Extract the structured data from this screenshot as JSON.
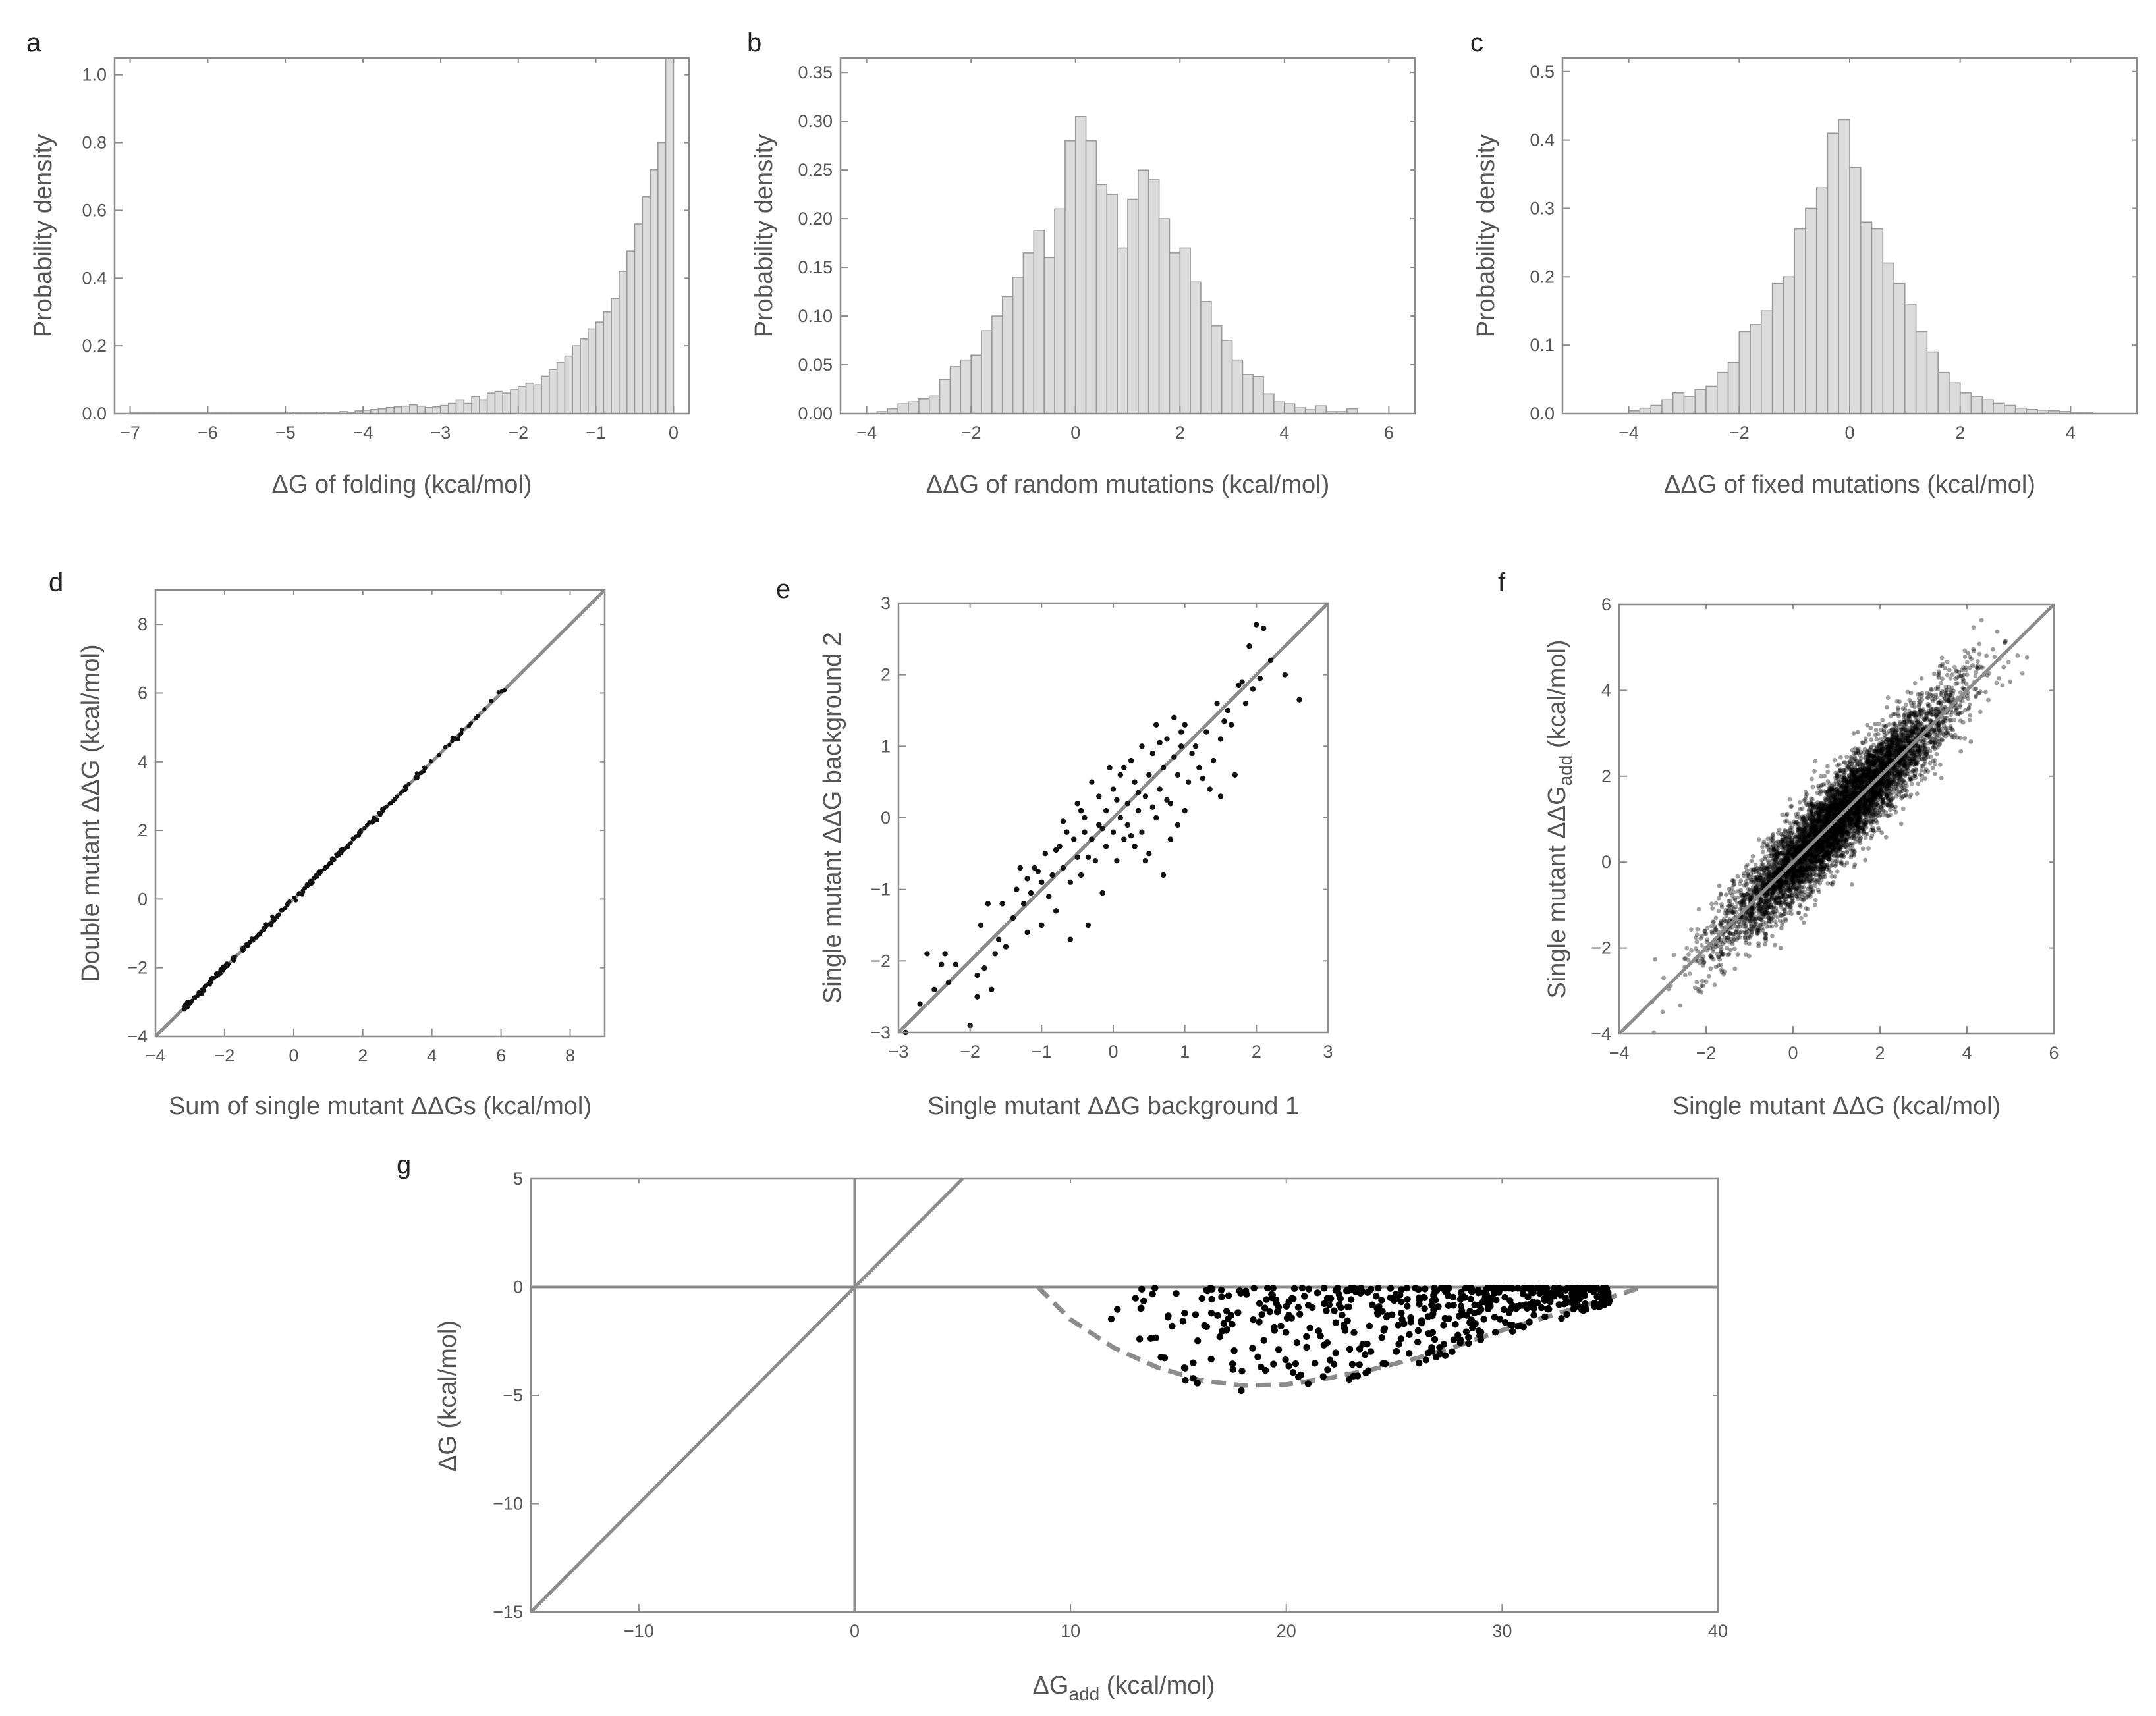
{
  "chart_data": [
    {
      "id": "a",
      "panel_label": "a",
      "type": "bar",
      "xlabel": "ΔG of folding (kcal/mol)",
      "ylabel": "Probability density",
      "xlim": [
        -7.2,
        0.2
      ],
      "ylim": [
        0,
        1.05
      ],
      "xticks": [
        -7,
        -6,
        -5,
        -4,
        -3,
        -2,
        -1,
        0
      ],
      "xtick_labels": [
        "−7",
        "−6",
        "−5",
        "−4",
        "−3",
        "−2",
        "−1",
        "0"
      ],
      "yticks": [
        0,
        0.2,
        0.4,
        0.6,
        0.8,
        1.0
      ],
      "ytick_labels": [
        "0.0",
        "0.2",
        "0.4",
        "0.6",
        "0.8",
        "1.0"
      ],
      "bin_start": -7.0,
      "bin_width": 0.1,
      "values": [
        0.002,
        0.002,
        0.002,
        0.002,
        0.002,
        0.002,
        0.002,
        0.002,
        0.002,
        0.002,
        0.002,
        0.002,
        0.002,
        0.002,
        0.002,
        0.002,
        0.002,
        0.002,
        0.002,
        0.002,
        0.002,
        0.004,
        0.004,
        0.004,
        0.002,
        0.004,
        0.004,
        0.006,
        0.004,
        0.008,
        0.01,
        0.012,
        0.014,
        0.018,
        0.02,
        0.022,
        0.026,
        0.022,
        0.018,
        0.02,
        0.024,
        0.03,
        0.04,
        0.03,
        0.05,
        0.04,
        0.06,
        0.065,
        0.06,
        0.07,
        0.08,
        0.09,
        0.085,
        0.11,
        0.13,
        0.15,
        0.17,
        0.2,
        0.22,
        0.25,
        0.27,
        0.3,
        0.34,
        0.42,
        0.48,
        0.56,
        0.64,
        0.72,
        0.8,
        1.05
      ]
    },
    {
      "id": "b",
      "panel_label": "b",
      "type": "bar",
      "xlabel": "ΔΔG of random mutations (kcal/mol)",
      "ylabel": "Probability density",
      "xlim": [
        -4.5,
        6.5
      ],
      "ylim": [
        0,
        0.365
      ],
      "xticks": [
        -4,
        -2,
        0,
        2,
        4,
        6
      ],
      "xtick_labels": [
        "−4",
        "−2",
        "0",
        "2",
        "4",
        "6"
      ],
      "yticks": [
        0,
        0.05,
        0.1,
        0.15,
        0.2,
        0.25,
        0.3,
        0.35
      ],
      "ytick_labels": [
        "0.00",
        "0.05",
        "0.10",
        "0.15",
        "0.20",
        "0.25",
        "0.30",
        "0.35"
      ],
      "bin_start": -3.8,
      "bin_width": 0.2,
      "values": [
        0.002,
        0.005,
        0.01,
        0.012,
        0.015,
        0.018,
        0.035,
        0.048,
        0.055,
        0.06,
        0.085,
        0.1,
        0.12,
        0.14,
        0.165,
        0.188,
        0.16,
        0.21,
        0.28,
        0.305,
        0.28,
        0.235,
        0.225,
        0.17,
        0.22,
        0.25,
        0.24,
        0.2,
        0.165,
        0.17,
        0.135,
        0.115,
        0.09,
        0.075,
        0.055,
        0.04,
        0.038,
        0.02,
        0.012,
        0.01,
        0.006,
        0.004,
        0.008,
        0.002,
        0.002,
        0.005
      ]
    },
    {
      "id": "c",
      "panel_label": "c",
      "type": "bar",
      "xlabel": "ΔΔG of fixed mutations (kcal/mol)",
      "ylabel": "Probability density",
      "xlim": [
        -5.2,
        5.2
      ],
      "ylim": [
        0,
        0.52
      ],
      "xticks": [
        -4,
        -2,
        0,
        2,
        4
      ],
      "xtick_labels": [
        "−4",
        "−2",
        "0",
        "2",
        "4"
      ],
      "yticks": [
        0,
        0.1,
        0.2,
        0.3,
        0.4,
        0.5
      ],
      "ytick_labels": [
        "0.0",
        "0.1",
        "0.2",
        "0.3",
        "0.4",
        "0.5"
      ],
      "bin_start": -4.0,
      "bin_width": 0.2,
      "values": [
        0.004,
        0.008,
        0.012,
        0.02,
        0.03,
        0.025,
        0.035,
        0.04,
        0.06,
        0.075,
        0.12,
        0.13,
        0.15,
        0.19,
        0.2,
        0.27,
        0.3,
        0.33,
        0.41,
        0.43,
        0.36,
        0.28,
        0.27,
        0.22,
        0.19,
        0.16,
        0.12,
        0.09,
        0.06,
        0.045,
        0.03,
        0.025,
        0.02,
        0.015,
        0.012,
        0.008,
        0.006,
        0.005,
        0.004,
        0.003,
        0.002,
        0.002
      ]
    },
    {
      "id": "d",
      "panel_label": "d",
      "type": "scatter",
      "xlabel": "Sum of single mutant ΔΔGs (kcal/mol)",
      "ylabel": "Double mutant ΔΔG (kcal/mol)",
      "xlim": [
        -4,
        9
      ],
      "ylim": [
        -4,
        9
      ],
      "xticks": [
        -4,
        -2,
        0,
        2,
        4,
        6,
        8
      ],
      "xtick_labels": [
        "−4",
        "−2",
        "0",
        "2",
        "4",
        "6",
        "8"
      ],
      "yticks": [
        -4,
        -2,
        0,
        2,
        4,
        6,
        8
      ],
      "ytick_labels": [
        "−4",
        "−2",
        "0",
        "2",
        "4",
        "6",
        "8"
      ],
      "reference_line": "y = x",
      "point_count": 260,
      "x_range": [
        -3.2,
        6.9
      ],
      "point_offset_sd": 0.04
    },
    {
      "id": "e",
      "panel_label": "e",
      "type": "scatter",
      "xlabel": "Single mutant ΔΔG background 1",
      "ylabel": "Single mutant ΔΔG background 2",
      "xlim": [
        -3,
        3
      ],
      "ylim": [
        -3,
        3
      ],
      "xticks": [
        -3,
        -2,
        -1,
        0,
        1,
        2,
        3
      ],
      "xtick_labels": [
        "−3",
        "−2",
        "−1",
        "0",
        "1",
        "2",
        "3"
      ],
      "yticks": [
        -3,
        -2,
        -1,
        0,
        1,
        2,
        3
      ],
      "ytick_labels": [
        "−3",
        "−2",
        "−1",
        "0",
        "1",
        "2",
        "3"
      ],
      "reference_line": "y = x",
      "points": [
        [
          -2.9,
          -3.0
        ],
        [
          -2.7,
          -2.6
        ],
        [
          -2.6,
          -1.9
        ],
        [
          -2.5,
          -2.4
        ],
        [
          -2.4,
          -2.05
        ],
        [
          -2.35,
          -1.9
        ],
        [
          -2.2,
          -2.05
        ],
        [
          -2.0,
          -2.9
        ],
        [
          -1.9,
          -2.5
        ],
        [
          -1.9,
          -2.2
        ],
        [
          -1.85,
          -1.5
        ],
        [
          -1.8,
          -2.1
        ],
        [
          -1.75,
          -1.2
        ],
        [
          -1.7,
          -2.4
        ],
        [
          -1.6,
          -1.7
        ],
        [
          -1.5,
          -1.8
        ],
        [
          -1.4,
          -1.4
        ],
        [
          -1.35,
          -1.0
        ],
        [
          -1.3,
          -0.7
        ],
        [
          -1.25,
          -1.2
        ],
        [
          -1.2,
          -0.85
        ],
        [
          -1.15,
          -1.05
        ],
        [
          -1.1,
          -0.7
        ],
        [
          -1.05,
          -0.75
        ],
        [
          -1.0,
          -1.5
        ],
        [
          -0.95,
          -0.5
        ],
        [
          -0.9,
          -1.1
        ],
        [
          -0.85,
          -0.8
        ],
        [
          -0.8,
          -1.3
        ],
        [
          -0.75,
          -0.4
        ],
        [
          -0.7,
          -0.7
        ],
        [
          -0.65,
          -0.2
        ],
        [
          -0.6,
          -0.9
        ],
        [
          -0.6,
          -1.7
        ],
        [
          -0.55,
          -0.3
        ],
        [
          -0.5,
          -0.55
        ],
        [
          -0.5,
          0.2
        ],
        [
          -0.45,
          -0.8
        ],
        [
          -0.4,
          -0.2
        ],
        [
          -0.4,
          0.0
        ],
        [
          -0.35,
          -1.5
        ],
        [
          -0.3,
          -0.3
        ],
        [
          -0.3,
          0.5
        ],
        [
          -0.25,
          -0.6
        ],
        [
          -0.2,
          -0.1
        ],
        [
          -0.2,
          0.3
        ],
        [
          -0.15,
          -1.05
        ],
        [
          -0.1,
          0.1
        ],
        [
          -0.1,
          -0.4
        ],
        [
          -0.05,
          0.7
        ],
        [
          0.0,
          -0.2
        ],
        [
          0.0,
          0.4
        ],
        [
          0.05,
          -0.6
        ],
        [
          0.1,
          0.0
        ],
        [
          0.1,
          0.6
        ],
        [
          0.15,
          -0.3
        ],
        [
          0.2,
          0.2
        ],
        [
          0.2,
          -0.1
        ],
        [
          0.25,
          0.8
        ],
        [
          0.3,
          0.5
        ],
        [
          0.3,
          -0.4
        ],
        [
          0.35,
          0.1
        ],
        [
          0.4,
          1.0
        ],
        [
          0.4,
          -0.2
        ],
        [
          0.45,
          0.3
        ],
        [
          0.5,
          0.6
        ],
        [
          0.5,
          -0.5
        ],
        [
          0.55,
          0.9
        ],
        [
          0.6,
          1.3
        ],
        [
          0.6,
          0.0
        ],
        [
          0.65,
          0.4
        ],
        [
          0.7,
          -0.8
        ],
        [
          0.7,
          0.7
        ],
        [
          0.75,
          1.1
        ],
        [
          0.8,
          0.2
        ],
        [
          0.8,
          -0.3
        ],
        [
          0.85,
          1.4
        ],
        [
          0.9,
          0.6
        ],
        [
          0.9,
          -0.1
        ],
        [
          0.95,
          1.0
        ],
        [
          1.0,
          0.1
        ],
        [
          1.0,
          1.3
        ],
        [
          1.05,
          0.5
        ],
        [
          1.1,
          0.9
        ],
        [
          1.2,
          0.7
        ],
        [
          1.3,
          1.2
        ],
        [
          1.35,
          0.4
        ],
        [
          1.4,
          0.8
        ],
        [
          1.5,
          1.1
        ],
        [
          1.5,
          0.3
        ],
        [
          1.6,
          1.5
        ],
        [
          1.65,
          1.3
        ],
        [
          1.7,
          0.6
        ],
        [
          1.8,
          1.9
        ],
        [
          1.85,
          1.6
        ],
        [
          1.9,
          2.4
        ],
        [
          1.95,
          1.8
        ],
        [
          2.0,
          2.7
        ],
        [
          2.05,
          1.95
        ],
        [
          2.1,
          2.65
        ],
        [
          2.2,
          2.2
        ],
        [
          2.4,
          2.0
        ],
        [
          2.6,
          1.65
        ],
        [
          -2.3,
          -2.3
        ],
        [
          -1.55,
          -1.2
        ],
        [
          -1.0,
          -0.9
        ],
        [
          -0.7,
          -0.05
        ],
        [
          -0.35,
          -0.55
        ],
        [
          0.15,
          0.7
        ],
        [
          0.45,
          -0.6
        ],
        [
          0.75,
          0.25
        ],
        [
          1.15,
          1.0
        ],
        [
          1.45,
          1.6
        ],
        [
          1.75,
          1.85
        ],
        [
          -0.15,
          -0.15
        ],
        [
          0.35,
          0.35
        ],
        [
          0.65,
          1.05
        ],
        [
          -0.8,
          -0.45
        ],
        [
          0.25,
          -0.25
        ],
        [
          0.85,
          0.85
        ],
        [
          1.25,
          0.55
        ],
        [
          -1.2,
          -1.6
        ],
        [
          0.05,
          0.25
        ],
        [
          0.55,
          0.15
        ],
        [
          0.95,
          1.2
        ],
        [
          1.55,
          1.35
        ],
        [
          -0.45,
          0.1
        ],
        [
          -1.65,
          -1.9
        ]
      ]
    },
    {
      "id": "f",
      "panel_label": "f",
      "type": "scatter",
      "xlabel": "Single mutant ΔΔG (kcal/mol)",
      "ylabel_main": "Single mutant ΔΔG",
      "ylabel_sub": "add",
      "ylabel_unit": " (kcal/mol)",
      "xlim": [
        -4,
        6
      ],
      "ylim": [
        -4,
        6
      ],
      "xticks": [
        -4,
        -2,
        0,
        2,
        4,
        6
      ],
      "xtick_labels": [
        "−4",
        "−2",
        "0",
        "2",
        "4",
        "6"
      ],
      "yticks": [
        -4,
        -2,
        0,
        2,
        4,
        6
      ],
      "ytick_labels": [
        "−4",
        "−2",
        "0",
        "2",
        "4",
        "6"
      ],
      "reference_line": "y = x",
      "point_count": 6000,
      "x_mean": 1.1,
      "x_sd": 1.3,
      "y_noise_sd": 0.5
    },
    {
      "id": "g",
      "panel_label": "g",
      "type": "scatter",
      "xlabel_main": "ΔG",
      "xlabel_sub": "add",
      "xlabel_unit": " (kcal/mol)",
      "ylabel": "ΔG (kcal/mol)",
      "xlim": [
        -15,
        40
      ],
      "ylim": [
        -15,
        5
      ],
      "xticks": [
        -10,
        0,
        10,
        20,
        30,
        40
      ],
      "xtick_labels": [
        "−10",
        "0",
        "10",
        "20",
        "30",
        "40"
      ],
      "yticks": [
        -15,
        -10,
        -5,
        0,
        5
      ],
      "ytick_labels": [
        "−15",
        "−10",
        "−5",
        "0",
        "5"
      ],
      "reference_lines": [
        "y = x",
        "x = 0",
        "y = 0"
      ],
      "dashed_curve": [
        [
          8.5,
          0.0
        ],
        [
          10.0,
          -1.5
        ],
        [
          12.0,
          -2.8
        ],
        [
          14.0,
          -3.7
        ],
        [
          16.0,
          -4.3
        ],
        [
          18.0,
          -4.55
        ],
        [
          20.0,
          -4.5
        ],
        [
          22.0,
          -4.2
        ],
        [
          24.0,
          -3.8
        ],
        [
          26.0,
          -3.3
        ],
        [
          28.0,
          -2.7
        ],
        [
          30.0,
          -2.0
        ],
        [
          32.0,
          -1.4
        ],
        [
          34.0,
          -0.8
        ],
        [
          36.5,
          0.0
        ]
      ],
      "point_count": 520,
      "x_range": [
        11,
        35
      ]
    }
  ]
}
